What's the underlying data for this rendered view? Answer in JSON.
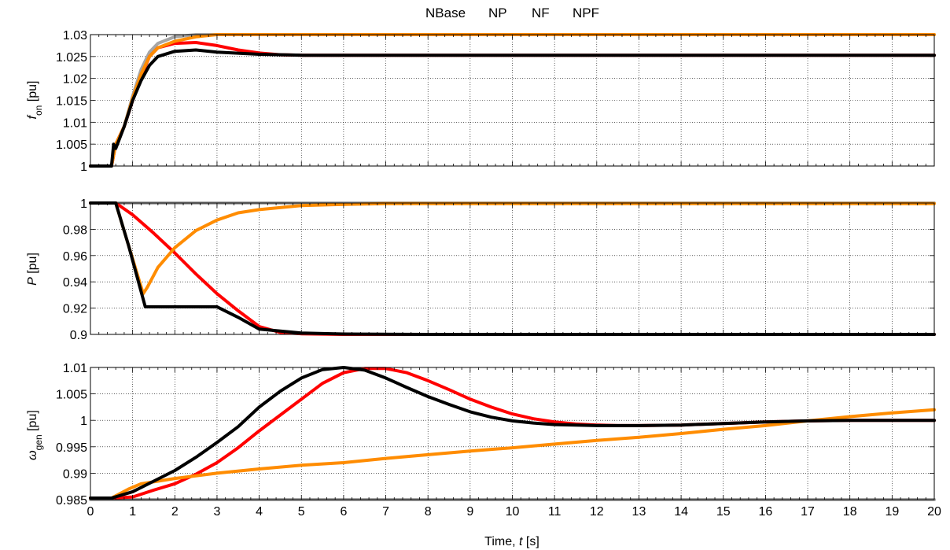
{
  "figure": {
    "legend": [
      {
        "name": "NBase",
        "color": "#a6a6a6"
      },
      {
        "name": "NP",
        "color": "#ff0000"
      },
      {
        "name": "NF",
        "color": "#ff8c00"
      },
      {
        "name": "NPF",
        "color": "#000000"
      }
    ],
    "xlabel_main": "Time, ",
    "xlabel_var": "t",
    "xlabel_unit": " [s]"
  },
  "chart_data": [
    {
      "type": "line",
      "ylabel_symbol": "f",
      "ylabel_sub": "on",
      "ylabel_unit": " [pu]",
      "xlim": [
        0,
        20
      ],
      "ylim": [
        1,
        1.03
      ],
      "yticks": [
        "1",
        "1.005",
        "1.01",
        "1.015",
        "1.02",
        "1.025",
        "1.03"
      ],
      "ytick_values": [
        1,
        1.005,
        1.01,
        1.015,
        1.02,
        1.025,
        1.03
      ],
      "xticks": [
        0,
        1,
        2,
        3,
        4,
        5,
        6,
        7,
        8,
        9,
        10,
        11,
        12,
        13,
        14,
        15,
        16,
        17,
        18,
        19,
        20
      ],
      "grid": true,
      "series": [
        {
          "name": "NBase",
          "color": "#a6a6a6",
          "points": [
            [
              0,
              1
            ],
            [
              0.5,
              1
            ],
            [
              0.6,
              1.005
            ],
            [
              0.8,
              1.009
            ],
            [
              1.0,
              1.016
            ],
            [
              1.2,
              1.022
            ],
            [
              1.4,
              1.026
            ],
            [
              1.6,
              1.028
            ],
            [
              2.0,
              1.0295
            ],
            [
              2.5,
              1.03
            ],
            [
              20,
              1.03
            ]
          ]
        },
        {
          "name": "NP",
          "color": "#ff0000",
          "points": [
            [
              0,
              1
            ],
            [
              0.5,
              1
            ],
            [
              0.6,
              1.005
            ],
            [
              0.8,
              1.009
            ],
            [
              1.0,
              1.015
            ],
            [
              1.2,
              1.0205
            ],
            [
              1.4,
              1.025
            ],
            [
              1.6,
              1.027
            ],
            [
              2.0,
              1.028
            ],
            [
              2.5,
              1.0282
            ],
            [
              3,
              1.0275
            ],
            [
              3.5,
              1.0265
            ],
            [
              4,
              1.0258
            ],
            [
              4.5,
              1.0254
            ],
            [
              5,
              1.0253
            ],
            [
              20,
              1.0253
            ]
          ]
        },
        {
          "name": "NF",
          "color": "#ff8c00",
          "points": [
            [
              0,
              1
            ],
            [
              0.5,
              1
            ],
            [
              0.6,
              1.005
            ],
            [
              0.8,
              1.009
            ],
            [
              1.0,
              1.0155
            ],
            [
              1.2,
              1.021
            ],
            [
              1.4,
              1.025
            ],
            [
              1.6,
              1.027
            ],
            [
              2.0,
              1.0285
            ],
            [
              2.5,
              1.0295
            ],
            [
              3,
              1.03
            ],
            [
              20,
              1.03
            ]
          ]
        },
        {
          "name": "NPF",
          "color": "#000000",
          "points": [
            [
              0,
              1
            ],
            [
              0.5,
              1
            ],
            [
              0.55,
              1.005
            ],
            [
              0.6,
              1.004
            ],
            [
              0.8,
              1.009
            ],
            [
              1.0,
              1.015
            ],
            [
              1.2,
              1.0195
            ],
            [
              1.4,
              1.023
            ],
            [
              1.6,
              1.025
            ],
            [
              2.0,
              1.0262
            ],
            [
              2.5,
              1.0265
            ],
            [
              3,
              1.026
            ],
            [
              4,
              1.0255
            ],
            [
              5,
              1.0253
            ],
            [
              20,
              1.0253
            ]
          ]
        }
      ]
    },
    {
      "type": "line",
      "ylabel_symbol": "P",
      "ylabel_sub": "",
      "ylabel_unit": " [pu]",
      "xlim": [
        0,
        20
      ],
      "ylim": [
        0.9,
        1
      ],
      "yticks": [
        "0.9",
        "0.92",
        "0.94",
        "0.96",
        "0.98",
        "1"
      ],
      "ytick_values": [
        0.9,
        0.92,
        0.94,
        0.96,
        0.98,
        1
      ],
      "xticks": [
        0,
        1,
        2,
        3,
        4,
        5,
        6,
        7,
        8,
        9,
        10,
        11,
        12,
        13,
        14,
        15,
        16,
        17,
        18,
        19,
        20
      ],
      "grid": true,
      "series": [
        {
          "name": "NBase",
          "color": "#a6a6a6",
          "points": [
            [
              0,
              1
            ],
            [
              20,
              1
            ]
          ]
        },
        {
          "name": "NP",
          "color": "#ff0000",
          "points": [
            [
              0,
              1
            ],
            [
              0.6,
              1
            ],
            [
              1.0,
              0.991
            ],
            [
              1.5,
              0.977
            ],
            [
              2.0,
              0.962
            ],
            [
              2.5,
              0.946
            ],
            [
              3.0,
              0.931
            ],
            [
              3.5,
              0.918
            ],
            [
              4.0,
              0.906
            ],
            [
              4.5,
              0.9015
            ],
            [
              5.0,
              0.9005
            ],
            [
              6.0,
              0.9
            ],
            [
              20,
              0.9
            ]
          ]
        },
        {
          "name": "NF",
          "color": "#ff8c00",
          "points": [
            [
              0,
              1
            ],
            [
              0.6,
              1
            ],
            [
              0.9,
              0.968
            ],
            [
              1.25,
              0.931
            ],
            [
              1.35,
              0.936
            ],
            [
              1.6,
              0.951
            ],
            [
              2.0,
              0.966
            ],
            [
              2.5,
              0.979
            ],
            [
              3.0,
              0.987
            ],
            [
              3.5,
              0.9925
            ],
            [
              4.0,
              0.995
            ],
            [
              5.0,
              0.998
            ],
            [
              6.0,
              0.999
            ],
            [
              7.0,
              0.9995
            ],
            [
              20,
              0.9995
            ]
          ]
        },
        {
          "name": "NPF",
          "color": "#000000",
          "points": [
            [
              0,
              1
            ],
            [
              0.6,
              1
            ],
            [
              0.9,
              0.968
            ],
            [
              1.3,
              0.921
            ],
            [
              3.0,
              0.921
            ],
            [
              3.5,
              0.913
            ],
            [
              4.0,
              0.904
            ],
            [
              4.5,
              0.9025
            ],
            [
              5.0,
              0.901
            ],
            [
              6.0,
              0.9003
            ],
            [
              8.0,
              0.9
            ],
            [
              20,
              0.9
            ]
          ]
        }
      ]
    },
    {
      "type": "line",
      "ylabel_symbol": "ω",
      "ylabel_sub": "gen",
      "ylabel_unit": " [pu]",
      "xlim": [
        0,
        20
      ],
      "ylim": [
        0.985,
        1.01
      ],
      "yticks": [
        "0.985",
        "0.99",
        "0.995",
        "1",
        "1.005",
        "1.01"
      ],
      "ytick_values": [
        0.985,
        0.99,
        0.995,
        1,
        1.005,
        1.01
      ],
      "xticks": [
        0,
        1,
        2,
        3,
        4,
        5,
        6,
        7,
        8,
        9,
        10,
        11,
        12,
        13,
        14,
        15,
        16,
        17,
        18,
        19,
        20
      ],
      "grid": true,
      "series": [
        {
          "name": "NBase",
          "color": "#a6a6a6",
          "points": [
            [
              0,
              0.985
            ],
            [
              20,
              0.985
            ]
          ]
        },
        {
          "name": "NP",
          "color": "#ff0000",
          "points": [
            [
              0,
              0.9853
            ],
            [
              0.5,
              0.9853
            ],
            [
              1.0,
              0.9855
            ],
            [
              1.5,
              0.9868
            ],
            [
              2.0,
              0.988
            ],
            [
              2.5,
              0.9898
            ],
            [
              3.0,
              0.992
            ],
            [
              3.5,
              0.9948
            ],
            [
              4.0,
              0.998
            ],
            [
              4.5,
              1.001
            ],
            [
              5.0,
              1.004
            ],
            [
              5.5,
              1.007
            ],
            [
              6.0,
              1.009
            ],
            [
              6.5,
              1.0098
            ],
            [
              7.0,
              1.0098
            ],
            [
              7.5,
              1.009
            ],
            [
              8.0,
              1.0075
            ],
            [
              8.5,
              1.0058
            ],
            [
              9.0,
              1.004
            ],
            [
              9.5,
              1.0025
            ],
            [
              10.0,
              1.0012
            ],
            [
              10.5,
              1.0003
            ],
            [
              11.0,
              0.9997
            ],
            [
              11.5,
              0.9993
            ],
            [
              12.0,
              0.9991
            ],
            [
              12.5,
              0.999
            ],
            [
              13,
              0.999
            ],
            [
              14,
              0.9991
            ],
            [
              15,
              0.9994
            ],
            [
              16,
              0.9997
            ],
            [
              17,
              0.9999
            ],
            [
              18,
              1.0
            ],
            [
              20,
              1.0
            ]
          ]
        },
        {
          "name": "NF",
          "color": "#ff8c00",
          "points": [
            [
              0,
              0.9853
            ],
            [
              0.5,
              0.9853
            ],
            [
              0.9,
              0.987
            ],
            [
              1.2,
              0.988
            ],
            [
              1.6,
              0.9885
            ],
            [
              2.0,
              0.989
            ],
            [
              3.0,
              0.99
            ],
            [
              4.0,
              0.9908
            ],
            [
              5.0,
              0.9915
            ],
            [
              6.0,
              0.992
            ],
            [
              7.0,
              0.9928
            ],
            [
              8.0,
              0.9935
            ],
            [
              9.0,
              0.9942
            ],
            [
              10.0,
              0.9948
            ],
            [
              11.0,
              0.9955
            ],
            [
              12.0,
              0.9962
            ],
            [
              13.0,
              0.9968
            ],
            [
              14.0,
              0.9975
            ],
            [
              15.0,
              0.9983
            ],
            [
              16.0,
              0.999
            ],
            [
              17.0,
              0.9999
            ],
            [
              18.0,
              1.0007
            ],
            [
              19.0,
              1.0014
            ],
            [
              20,
              1.002
            ]
          ]
        },
        {
          "name": "NPF",
          "color": "#000000",
          "points": [
            [
              0,
              0.9853
            ],
            [
              0.5,
              0.9853
            ],
            [
              1.0,
              0.9865
            ],
            [
              1.5,
              0.9885
            ],
            [
              2.0,
              0.9905
            ],
            [
              2.5,
              0.993
            ],
            [
              3.0,
              0.9958
            ],
            [
              3.5,
              0.9988
            ],
            [
              4.0,
              1.0025
            ],
            [
              4.5,
              1.0055
            ],
            [
              5.0,
              1.008
            ],
            [
              5.5,
              1.0096
            ],
            [
              6.0,
              1.01
            ],
            [
              6.5,
              1.0095
            ],
            [
              7.0,
              1.008
            ],
            [
              7.5,
              1.0062
            ],
            [
              8.0,
              1.0045
            ],
            [
              8.5,
              1.003
            ],
            [
              9.0,
              1.0016
            ],
            [
              9.5,
              1.0006
            ],
            [
              10.0,
              0.9999
            ],
            [
              10.5,
              0.9995
            ],
            [
              11.0,
              0.9992
            ],
            [
              12,
              0.999
            ],
            [
              13,
              0.999
            ],
            [
              14,
              0.9991
            ],
            [
              15,
              0.9994
            ],
            [
              16,
              0.9997
            ],
            [
              17,
              0.9999
            ],
            [
              18,
              1.0
            ],
            [
              20,
              1.0
            ]
          ]
        }
      ]
    }
  ]
}
